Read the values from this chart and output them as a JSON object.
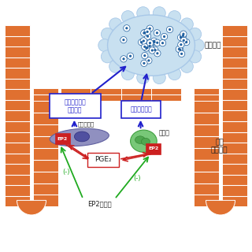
{
  "title": "",
  "background_color": "#ffffff",
  "labels": {
    "cancer": "大腸がん",
    "normal_epithelium_line1": "正常",
    "normal_epithelium_line2": "大腸上皮",
    "cytokine_growth_1": "サイトカイン",
    "cytokine_growth_2": "成長因子",
    "cytokine": "サイトカイン",
    "fibroblast": "線維芽細胞",
    "neutrophil": "好中球",
    "pge2": "PGE₂",
    "ep2_inhibitor": "EP2阻害薬",
    "ep2": "EP2",
    "inhibit": "(-)"
  },
  "colors": {
    "intestine_outer": "#E07030",
    "cancer_cell_fill": "#C8E0F0",
    "cancer_cell_dot": "#2060A0",
    "fibroblast_fill": "#9090C0",
    "fibroblast_dark": "#5050A0",
    "neutrophil_fill": "#78C878",
    "neutrophil_dark": "#50A850",
    "ep2_box": "#CC2020",
    "arrow_blue": "#2020CC",
    "arrow_red": "#CC2020",
    "arrow_green": "#20AA20",
    "label_blue": "#2020CC",
    "label_black": "#202020",
    "box_border_blue": "#2020CC"
  },
  "fig_width": 3.2,
  "fig_height": 3.2,
  "dpi": 100
}
